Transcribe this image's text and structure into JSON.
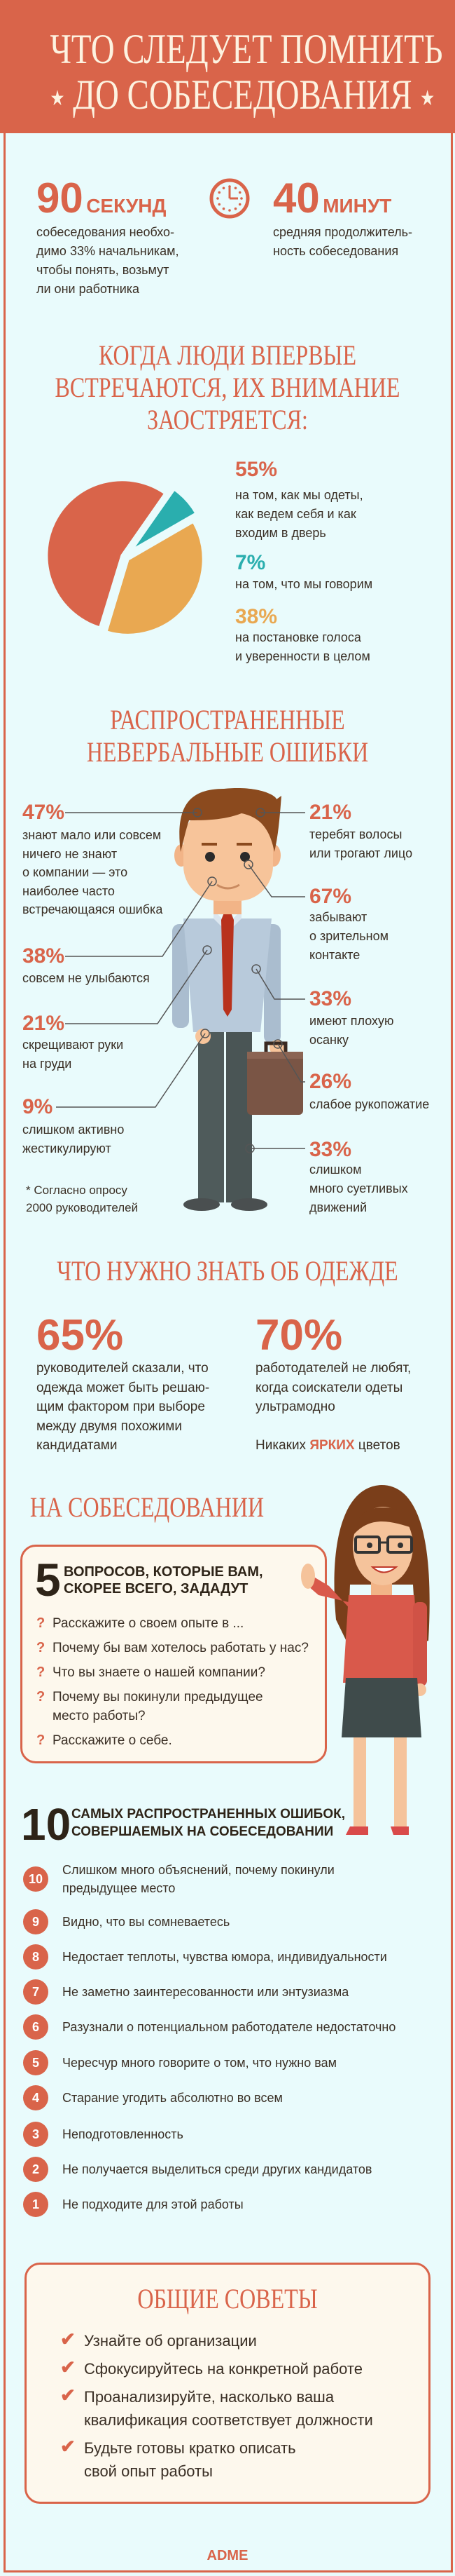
{
  "colors": {
    "accent": "#d9644a",
    "teal": "#2aaeae",
    "orange": "#e9a851",
    "background": "#e9fbfc",
    "box": "#fdf8ed",
    "text": "#3a2f25"
  },
  "header": {
    "title_line1": "ЧТО СЛЕДУЕТ ПОМНИТЬ",
    "title_line2": "ДО СОБЕСЕДОВАНИЯ",
    "star_icon": "star"
  },
  "stats": [
    {
      "number": "90",
      "unit": "СЕКУНД",
      "lines": [
        "собеседования необхо-",
        "димо 33% начальникам,",
        "чтобы понять, возьмут",
        "ли они работника"
      ]
    },
    {
      "number": "40",
      "unit": "МИНУТ",
      "lines": [
        "средняя продолжитель-",
        "ность собеседования"
      ]
    }
  ],
  "clock_icon": "clock",
  "attention": {
    "title_lines": [
      "КОГДА ЛЮДИ ВПЕРВЫЕ",
      "ВСТРЕЧАЮТСЯ, ИХ ВНИМАНИЕ",
      "ЗАОСТРЯЕТСЯ:"
    ],
    "items": [
      {
        "pct": "55%",
        "lines": [
          "на том, как мы одеты,",
          "как ведем себя и как",
          "входим в дверь"
        ]
      },
      {
        "pct": "7%",
        "lines": [
          "на том, что мы говорим"
        ]
      },
      {
        "pct": "38%",
        "lines": [
          "на постановке голоса",
          "и уверенности в целом"
        ]
      }
    ]
  },
  "chart_data": {
    "type": "pie",
    "categories": [
      "на том, как мы одеты, как ведем себя и как входим в дверь",
      "на том, что мы говорим",
      "на постановке голоса и уверенности в целом"
    ],
    "values": [
      55,
      7,
      38
    ],
    "colors": [
      "#d9644a",
      "#2aaeae",
      "#e9a851"
    ]
  },
  "nonverbal": {
    "title_lines": [
      "РАСПРОСТРАНЕННЫЕ",
      "НЕВЕРБАЛЬНЫЕ ОШИБКИ"
    ],
    "left": [
      {
        "pct": "47%",
        "lines": [
          "знают мало или совсем",
          "ничего не знают",
          "о компании — это",
          "наиболее часто",
          "встречающаяся ошибка"
        ]
      },
      {
        "pct": "38%",
        "lines": [
          "совсем не улыбаются"
        ]
      },
      {
        "pct": "21%",
        "lines": [
          "скрещивают руки",
          "на груди"
        ]
      },
      {
        "pct": "9%",
        "lines": [
          "слишком активно",
          "жестикулируют"
        ]
      }
    ],
    "right": [
      {
        "pct": "21%",
        "lines": [
          "теребят волосы",
          "или трогают лицо"
        ]
      },
      {
        "pct": "67%",
        "lines": [
          "забывают",
          "о зрительном",
          "контакте"
        ]
      },
      {
        "pct": "33%",
        "lines": [
          "имеют плохую",
          "осанку"
        ]
      },
      {
        "pct": "26%",
        "lines": [
          "слабое рукопожатие"
        ]
      },
      {
        "pct": "33%",
        "lines": [
          "слишком",
          "много суетливых",
          "движений"
        ]
      }
    ],
    "footnote_lines": [
      "* Согласно опросу",
      "2000 руководителей"
    ]
  },
  "clothing": {
    "title": "ЧТО НУЖНО ЗНАТЬ ОБ ОДЕЖДЕ",
    "items": [
      {
        "pct": "65%",
        "lines": [
          "руководителей сказали, что",
          "одежда может быть решаю-",
          "щим фактором при выборе",
          "между двумя похожими",
          "кандидатами"
        ]
      },
      {
        "pct": "70%",
        "lines": [
          "работодателей не любят,",
          "когда соискатели одеты",
          "ультрамодно"
        ]
      }
    ],
    "note_before": "Никаких ",
    "note_highlight": "ЯРКИХ",
    "note_after": " цветов"
  },
  "interview": {
    "title": "НА СОБЕСЕДОВАНИИ",
    "box_number": "5",
    "box_header_lines": [
      "ВОПРОСОВ, КОТОРЫЕ ВАМ,",
      "СКОРЕЕ ВСЕГО, ЗАДАДУТ"
    ],
    "question_icon": "?",
    "questions": [
      {
        "lines": [
          "Расскажите о своем опыте в ..."
        ]
      },
      {
        "lines": [
          "Почему бы вам хотелось работать у нас?"
        ]
      },
      {
        "lines": [
          "Что вы знаете о нашей компании?"
        ]
      },
      {
        "lines": [
          "Почему вы покинули предыдущее",
          "место работы?"
        ]
      },
      {
        "lines": [
          "Расскажите о себе."
        ]
      }
    ]
  },
  "mistakes": {
    "number": "10",
    "header_lines": [
      "САМЫХ РАСПРОСТРАНЕННЫХ ОШИБОК,",
      "СОВЕРШАЕМЫХ НА СОБЕСЕДОВАНИИ"
    ],
    "items": [
      {
        "n": "10",
        "lines": [
          "Слишком много объяснений, почему покинули",
          "предыдущее место"
        ]
      },
      {
        "n": "9",
        "lines": [
          "Видно, что вы сомневаетесь"
        ]
      },
      {
        "n": "8",
        "lines": [
          "Недостает теплоты, чувства юмора, индивидуальности"
        ]
      },
      {
        "n": "7",
        "lines": [
          "Не заметно заинтересованности или энтузиазма"
        ]
      },
      {
        "n": "6",
        "lines": [
          "Разузнали о потенциальном работодателе недостаточно"
        ]
      },
      {
        "n": "5",
        "lines": [
          "Чересчур много говорите о том, что нужно вам"
        ]
      },
      {
        "n": "4",
        "lines": [
          "Старание угодить абсолютно во всем"
        ]
      },
      {
        "n": "3",
        "lines": [
          "Неподготовленность"
        ]
      },
      {
        "n": "2",
        "lines": [
          "Не получается выделиться среди других кандидатов"
        ]
      },
      {
        "n": "1",
        "lines": [
          "Не подходите для этой работы"
        ]
      }
    ]
  },
  "tips": {
    "title": "ОБЩИЕ СОВЕТЫ",
    "check_icon": "✔",
    "items": [
      {
        "lines": [
          "Узнайте об организации"
        ]
      },
      {
        "lines": [
          "Сфокусируйтесь на конкретной работе"
        ]
      },
      {
        "lines": [
          "Проанализируйте, насколько ваша",
          "квалификация соответствует должности"
        ]
      },
      {
        "lines": [
          "Будьте готовы кратко описать",
          "свой опыт работы"
        ]
      }
    ]
  },
  "footer": {
    "brand": "ADME"
  }
}
